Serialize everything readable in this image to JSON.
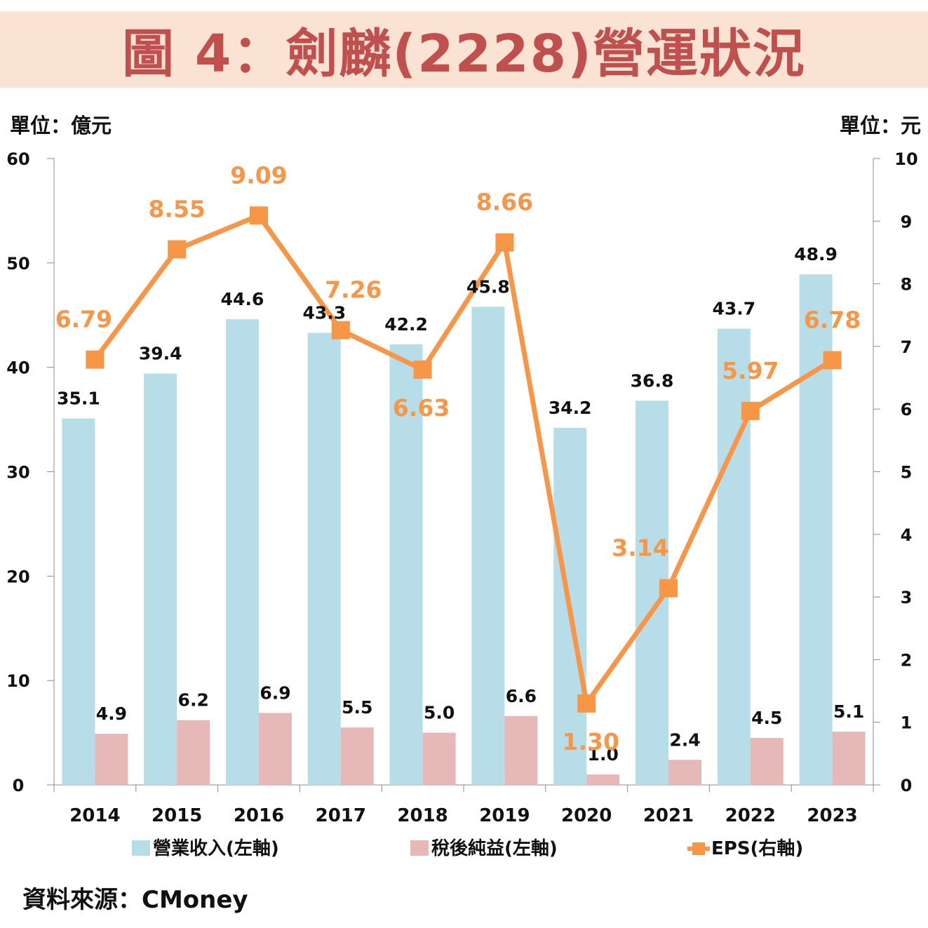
{
  "title": "圖 4：劍麟(2228)營運狀況",
  "unit_left": "單位：億元",
  "unit_right": "單位：元",
  "source": "資料來源：CMoney",
  "colors": {
    "revenue": "#b7dde8",
    "net_income": "#e6b9b8",
    "eps": "#f79646",
    "title": "#c0504d",
    "banner": "#fbe3d4"
  },
  "chart_data": {
    "type": "bar",
    "categories": [
      "2014",
      "2015",
      "2016",
      "2017",
      "2018",
      "2019",
      "2020",
      "2021",
      "2022",
      "2023"
    ],
    "series": [
      {
        "name": "營業收入(左軸)",
        "type": "bar",
        "axis": "left",
        "values": [
          35.1,
          39.4,
          44.6,
          43.3,
          42.2,
          45.8,
          34.2,
          36.8,
          43.7,
          48.9
        ]
      },
      {
        "name": "稅後純益(左軸)",
        "type": "bar",
        "axis": "left",
        "values": [
          4.9,
          6.2,
          6.9,
          5.5,
          5.0,
          6.6,
          1.0,
          2.4,
          4.5,
          5.1
        ]
      },
      {
        "name": "EPS(右軸)",
        "type": "line",
        "axis": "right",
        "values": [
          6.79,
          8.55,
          9.09,
          7.26,
          6.63,
          8.66,
          1.3,
          3.14,
          5.97,
          6.78
        ]
      }
    ],
    "revenue_labels": [
      "35.1",
      "39.4",
      "44.6",
      "43.3",
      "42.2",
      "45.8",
      "34.2",
      "36.8",
      "43.7",
      "48.9"
    ],
    "net_income_labels": [
      "4.9",
      "6.2",
      "6.9",
      "5.5",
      "5.0",
      "6.6",
      "1.0",
      "2.4",
      "4.5",
      "5.1"
    ],
    "eps_labels": [
      "6.79",
      "8.55",
      "9.09",
      "7.26",
      "6.63",
      "8.66",
      "1.30",
      "3.14",
      "5.97",
      "6.78"
    ],
    "ylim_left": [
      0,
      60
    ],
    "ylim_right": [
      0,
      10
    ],
    "left_ticks": [
      "0",
      "10",
      "20",
      "30",
      "40",
      "50",
      "60"
    ],
    "right_ticks": [
      "0",
      "1",
      "2",
      "3",
      "4",
      "5",
      "6",
      "7",
      "8",
      "9",
      "10"
    ],
    "grid": false,
    "legend_position": "bottom"
  }
}
